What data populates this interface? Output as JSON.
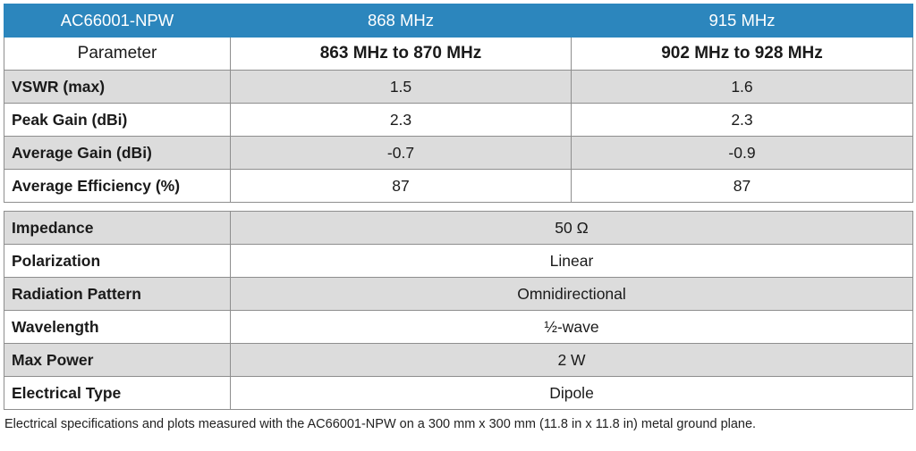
{
  "header": {
    "model": "AC66001-NPW",
    "col1": "868 MHz",
    "col2": "915 MHz"
  },
  "subheader": {
    "label": "Parameter",
    "range1": "863 MHz to 870 MHz",
    "range2": "902 MHz to 928 MHz"
  },
  "freq_rows": [
    {
      "label": "VSWR (max)",
      "v1": "1.5",
      "v2": "1.6"
    },
    {
      "label": "Peak Gain (dBi)",
      "v1": "2.3",
      "v2": "2.3"
    },
    {
      "label": "Average Gain (dBi)",
      "v1": "-0.7",
      "v2": "-0.9"
    },
    {
      "label": "Average Efficiency (%)",
      "v1": "87",
      "v2": "87"
    }
  ],
  "general_rows": [
    {
      "label": "Impedance",
      "value": "50 Ω"
    },
    {
      "label": "Polarization",
      "value": "Linear"
    },
    {
      "label": "Radiation Pattern",
      "value": "Omnidirectional"
    },
    {
      "label": "Wavelength",
      "value": "½-wave"
    },
    {
      "label": "Max Power",
      "value": "2 W"
    },
    {
      "label": "Electrical Type",
      "value": "Dipole"
    }
  ],
  "footnote": "Electrical specifications and plots measured with the AC66001-NPW on a 300 mm x 300 mm (11.8 in x 11.8 in) metal ground plane."
}
